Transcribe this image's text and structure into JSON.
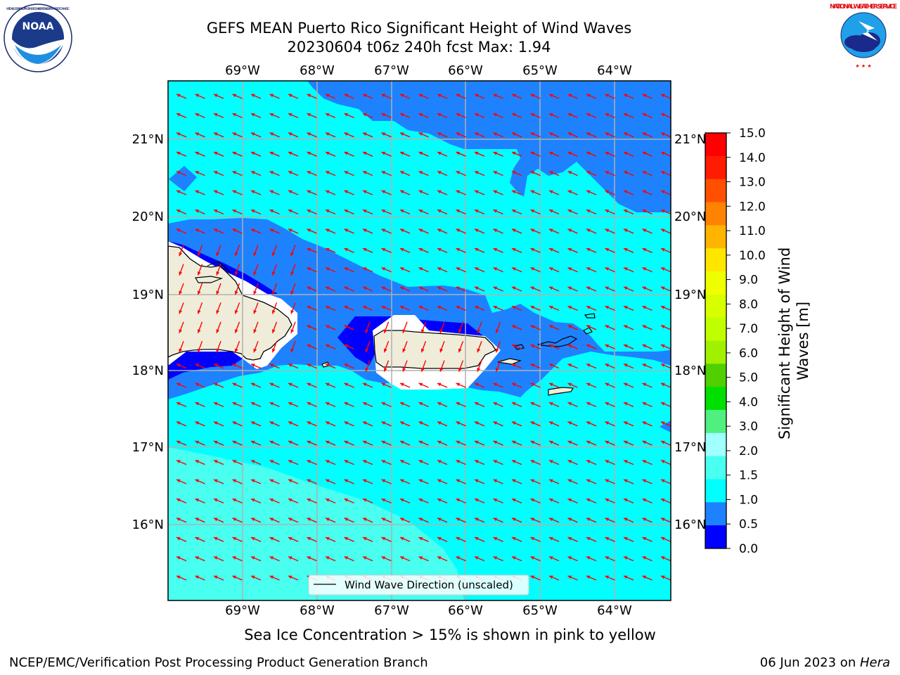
{
  "header": {
    "title_line1": "GEFS MEAN Puerto Rico Significant Height of Wind Waves",
    "title_line2": "20230604 t06z 240h fcst   Max: 1.94"
  },
  "logos": {
    "noaa_text": "NOAA",
    "noaa_ring_text": "NATIONAL OCEANIC AND ATMOSPHERIC ADMINISTRATION · U.S. DEPARTMENT OF COMMERCE",
    "nws_ring_text": "NATIONAL WEATHER SERVICE"
  },
  "map": {
    "lon_labels": [
      "69°W",
      "68°W",
      "67°W",
      "66°W",
      "65°W",
      "64°W"
    ],
    "lat_labels": [
      "21°N",
      "20°N",
      "19°N",
      "18°N",
      "17°N",
      "16°N"
    ],
    "legend_label": "Wind Wave Direction (unscaled)",
    "arrow_color": "#ff0000",
    "field_colors": {
      "0.0-0.5": "#0000ff",
      "0.5-1.0": "#1e82ff",
      "1.0-1.5": "#00ffff",
      "1.5-2.0": "#48fff0",
      "land": "#efedda"
    }
  },
  "colorbar": {
    "label": "Significant Height of Wind Waves [m]",
    "label_line1": "Significant Height of Wind",
    "label_line2": "Waves [m]",
    "ticks": [
      "15.0",
      "14.0",
      "13.0",
      "12.0",
      "11.0",
      "10.0",
      "9.0",
      "8.0",
      "7.0",
      "6.0",
      "5.0",
      "4.0",
      "3.0",
      "2.0",
      "1.5",
      "1.0",
      "0.5",
      "0.0"
    ],
    "colors_top_to_bottom": [
      "#ff0000",
      "#ff1c00",
      "#ff5000",
      "#ff8200",
      "#ffb400",
      "#ffe600",
      "#f0ff00",
      "#d8ff00",
      "#c0ff00",
      "#a0f000",
      "#50d000",
      "#00e000",
      "#50f080",
      "#a0ffff",
      "#48fff0",
      "#00ffff",
      "#1e82ff",
      "#0000ff"
    ]
  },
  "footnote": "Sea Ice Concentration > 15% is shown in pink to yellow",
  "footer": {
    "left": "NCEP/EMC/Verification Post Processing Product Generation Branch",
    "right_prefix": "06 Jun 2023 on ",
    "right_host": "Hera"
  }
}
